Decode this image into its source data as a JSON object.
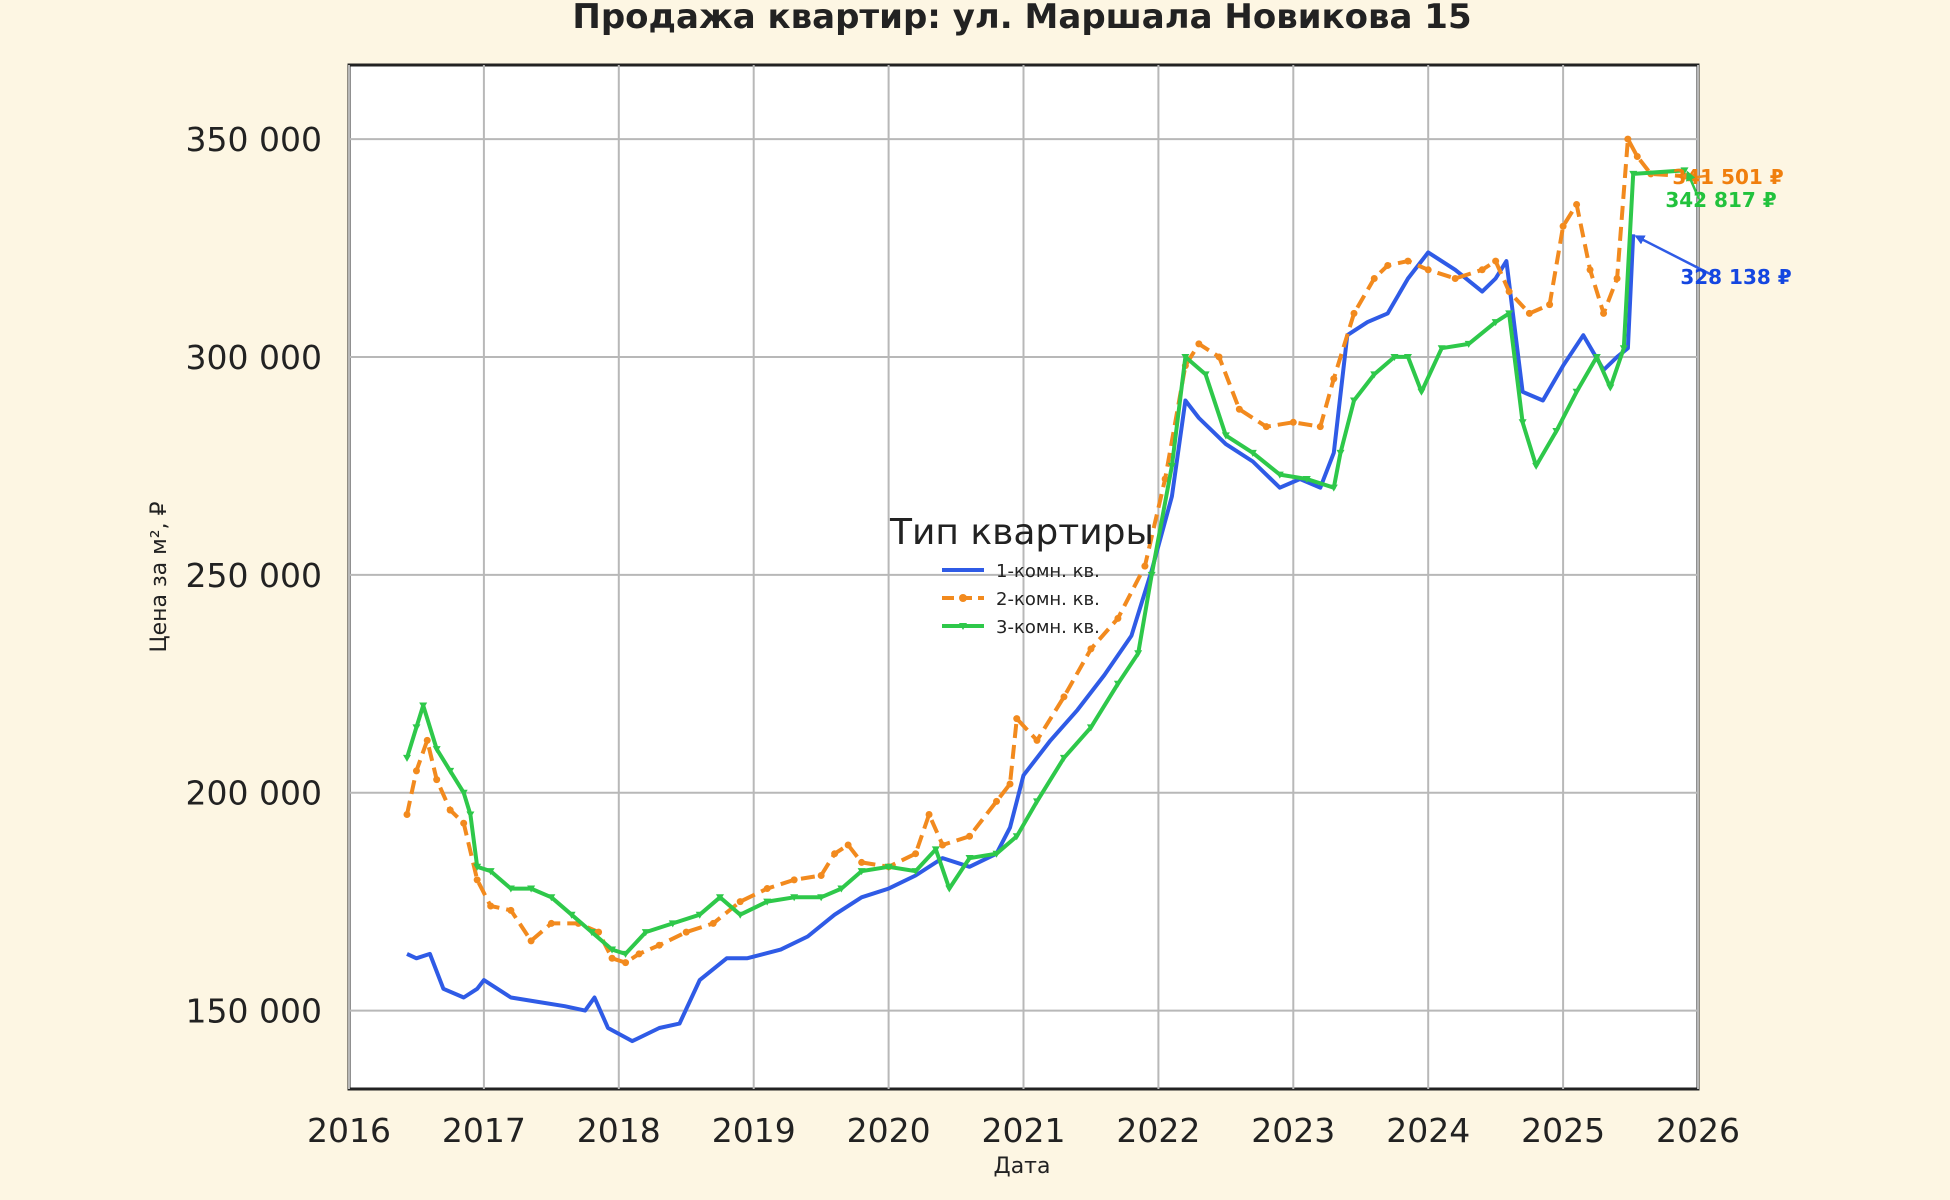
{
  "chart_data": {
    "type": "line",
    "title": "Продажа квартир: ул. Маршала Новикова 15",
    "xlabel": "Дата",
    "ylabel": "Цена за м², ₽",
    "xlim": [
      2016,
      2026
    ],
    "ylim": [
      132000,
      367000
    ],
    "x_ticks": [
      2016,
      2017,
      2018,
      2019,
      2020,
      2021,
      2022,
      2023,
      2024,
      2025,
      2026
    ],
    "x_tick_labels": [
      "2016",
      "2017",
      "2018",
      "2019",
      "2020",
      "2021",
      "2022",
      "2023",
      "2024",
      "2025",
      "2026"
    ],
    "y_ticks": [
      150000,
      200000,
      250000,
      300000,
      350000
    ],
    "y_tick_labels": [
      "150 000",
      "200 000",
      "250 000",
      "300 000",
      "350 000"
    ],
    "grid": true,
    "legend": {
      "title": "Тип квартиры",
      "position": "center"
    },
    "series": [
      {
        "name": "1-комн. кв.",
        "color": "#2f5be6",
        "marker": "none",
        "dash": "solid",
        "x": [
          2016.43,
          2016.5,
          2016.6,
          2016.7,
          2016.85,
          2016.95,
          2017.0,
          2017.2,
          2017.4,
          2017.6,
          2017.75,
          2017.82,
          2017.92,
          2018.1,
          2018.3,
          2018.45,
          2018.6,
          2018.8,
          2018.95,
          2019.2,
          2019.4,
          2019.6,
          2019.8,
          2020.0,
          2020.2,
          2020.4,
          2020.6,
          2020.8,
          2020.9,
          2021.0,
          2021.2,
          2021.4,
          2021.6,
          2021.8,
          2021.95,
          2022.1,
          2022.2,
          2022.3,
          2022.5,
          2022.7,
          2022.9,
          2023.05,
          2023.2,
          2023.3,
          2023.4,
          2023.55,
          2023.7,
          2023.85,
          2024.0,
          2024.2,
          2024.4,
          2024.5,
          2024.58,
          2024.7,
          2024.85,
          2025.0,
          2025.15,
          2025.3,
          2025.4,
          2025.48,
          2025.52
        ],
        "y": [
          163000,
          162000,
          163000,
          155000,
          153000,
          155000,
          157000,
          153000,
          152000,
          151000,
          150000,
          153000,
          146000,
          143000,
          146000,
          147000,
          157000,
          162000,
          162000,
          164000,
          167000,
          172000,
          176000,
          178000,
          181000,
          185000,
          183000,
          186000,
          192000,
          204000,
          212000,
          219000,
          227000,
          236000,
          251000,
          268000,
          290000,
          286000,
          280000,
          276000,
          270000,
          272000,
          270000,
          278000,
          305000,
          308000,
          310000,
          318000,
          324000,
          320000,
          315000,
          318000,
          322000,
          292000,
          290000,
          298000,
          305000,
          297000,
          300000,
          302000,
          328138
        ]
      },
      {
        "name": "2-комн. кв.",
        "color": "#f28a1e",
        "marker": "dot",
        "dash": "dashed",
        "x": [
          2016.43,
          2016.5,
          2016.58,
          2016.65,
          2016.75,
          2016.85,
          2016.95,
          2017.05,
          2017.2,
          2017.35,
          2017.5,
          2017.7,
          2017.85,
          2017.95,
          2018.05,
          2018.15,
          2018.3,
          2018.5,
          2018.7,
          2018.9,
          2019.1,
          2019.3,
          2019.5,
          2019.6,
          2019.7,
          2019.8,
          2020.0,
          2020.2,
          2020.3,
          2020.4,
          2020.6,
          2020.8,
          2020.9,
          2020.95,
          2021.1,
          2021.3,
          2021.5,
          2021.7,
          2021.9,
          2022.05,
          2022.2,
          2022.3,
          2022.45,
          2022.6,
          2022.8,
          2023.0,
          2023.2,
          2023.3,
          2023.45,
          2023.6,
          2023.7,
          2023.85,
          2024.0,
          2024.2,
          2024.4,
          2024.5,
          2024.6,
          2024.75,
          2024.9,
          2025.0,
          2025.1,
          2025.2,
          2025.3,
          2025.4,
          2025.48,
          2025.55,
          2025.65,
          2025.9
        ],
        "y": [
          195000,
          205000,
          212000,
          203000,
          196000,
          193000,
          180000,
          174000,
          173000,
          166000,
          170000,
          170000,
          168000,
          162000,
          161000,
          163000,
          165000,
          168000,
          170000,
          175000,
          178000,
          180000,
          181000,
          186000,
          188000,
          184000,
          183000,
          186000,
          195000,
          188000,
          190000,
          198000,
          202000,
          217000,
          212000,
          222000,
          233000,
          240000,
          252000,
          272000,
          298000,
          303000,
          300000,
          288000,
          284000,
          285000,
          284000,
          295000,
          310000,
          318000,
          321000,
          322000,
          320000,
          318000,
          320000,
          322000,
          315000,
          310000,
          312000,
          330000,
          335000,
          320000,
          310000,
          318000,
          350000,
          346000,
          342000,
          341501
        ]
      },
      {
        "name": "3-комн. кв.",
        "color": "#2ec84a",
        "marker": "triangle",
        "dash": "solid",
        "x": [
          2016.43,
          2016.5,
          2016.55,
          2016.65,
          2016.75,
          2016.85,
          2016.9,
          2016.95,
          2017.05,
          2017.2,
          2017.35,
          2017.5,
          2017.65,
          2017.8,
          2017.95,
          2018.05,
          2018.2,
          2018.4,
          2018.6,
          2018.75,
          2018.9,
          2019.1,
          2019.3,
          2019.5,
          2019.65,
          2019.8,
          2020.0,
          2020.2,
          2020.35,
          2020.45,
          2020.6,
          2020.8,
          2020.95,
          2021.1,
          2021.3,
          2021.5,
          2021.7,
          2021.85,
          2021.95,
          2022.1,
          2022.2,
          2022.35,
          2022.5,
          2022.7,
          2022.9,
          2023.1,
          2023.3,
          2023.35,
          2023.45,
          2023.6,
          2023.75,
          2023.85,
          2023.95,
          2024.1,
          2024.3,
          2024.5,
          2024.6,
          2024.7,
          2024.8,
          2024.95,
          2025.1,
          2025.25,
          2025.35,
          2025.45,
          2025.52,
          2025.9
        ],
        "y": [
          208000,
          215000,
          220000,
          210000,
          205000,
          200000,
          195000,
          183000,
          182000,
          178000,
          178000,
          176000,
          172000,
          168000,
          164000,
          163000,
          168000,
          170000,
          172000,
          176000,
          172000,
          175000,
          176000,
          176000,
          178000,
          182000,
          183000,
          182000,
          187000,
          178000,
          185000,
          186000,
          190000,
          198000,
          208000,
          215000,
          225000,
          232000,
          250000,
          275000,
          300000,
          296000,
          282000,
          278000,
          273000,
          272000,
          270000,
          278000,
          290000,
          296000,
          300000,
          300000,
          292000,
          302000,
          303000,
          308000,
          310000,
          285000,
          275000,
          283000,
          292000,
          300000,
          293000,
          302000,
          342000,
          342817
        ]
      }
    ],
    "end_labels": [
      {
        "series": "1-комн. кв.",
        "text": "328 138 ₽",
        "color": "#1446e0"
      },
      {
        "series": "2-комн. кв.",
        "text": "341 501 ₽",
        "color": "#f07f0e"
      },
      {
        "series": "3-комн. кв.",
        "text": "342 817 ₽",
        "color": "#22c23d"
      }
    ]
  }
}
